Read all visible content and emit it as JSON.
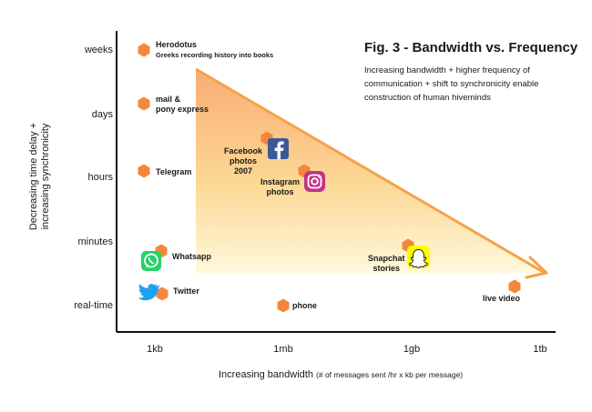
{
  "chart_data": {
    "type": "scatter",
    "title": "Fig. 3 - Bandwidth vs. Frequency",
    "subtitle": "Increasing bandwidth + higher frequency of communication + shift to synchronicity enable construction of human hiveminds",
    "xlabel": "Increasing bandwidth",
    "xlabel_note": "(# of messages sent /hr x kb per message)",
    "ylabel_line1": "Decreasing time delay +",
    "ylabel_line2": "increasing synchronicity",
    "x_ticks": [
      "1kb",
      "1mb",
      "1gb",
      "1tb"
    ],
    "y_ticks": [
      "weeks",
      "days",
      "hours",
      "minutes",
      "real-time"
    ],
    "grid": false,
    "legend": "none",
    "marker_color": "#f5873a",
    "trend": {
      "from": "days",
      "to": "1tb",
      "fill_top": "#f8a46a",
      "fill_bottom": "#fff6cc",
      "arrow_color": "#f5a24a"
    },
    "points": [
      {
        "label": "Herodotus",
        "sublabel": "Greeks recording history into books",
        "x": "1kb",
        "y": "weeks",
        "icon": ""
      },
      {
        "label": "mail &",
        "label2": "pony express",
        "x": "1kb",
        "y": "days",
        "icon": ""
      },
      {
        "label": "Telegram",
        "x": "1kb",
        "y": "hours",
        "icon": ""
      },
      {
        "label": "Whatsapp",
        "x": "1kb",
        "y": "minutes",
        "icon": "whatsapp-icon"
      },
      {
        "label": "Twitter",
        "x": "1kb",
        "y": "real-time",
        "icon": "twitter-icon"
      },
      {
        "label": "phone",
        "x": "1mb",
        "y": "real-time",
        "icon": ""
      },
      {
        "label": "Facebook",
        "label2": "photos",
        "label3": "2007",
        "x": "1mb",
        "y": "hours",
        "icon": "facebook-icon"
      },
      {
        "label": "Instagram",
        "label2": "photos",
        "x": "1mb",
        "y": "hours",
        "icon": "instagram-icon"
      },
      {
        "label": "Snapchat",
        "label2": "stories",
        "x": "1gb",
        "y": "minutes",
        "icon": "snapchat-icon"
      },
      {
        "label": "live video",
        "x": "1tb",
        "y": "real-time",
        "icon": ""
      }
    ]
  }
}
